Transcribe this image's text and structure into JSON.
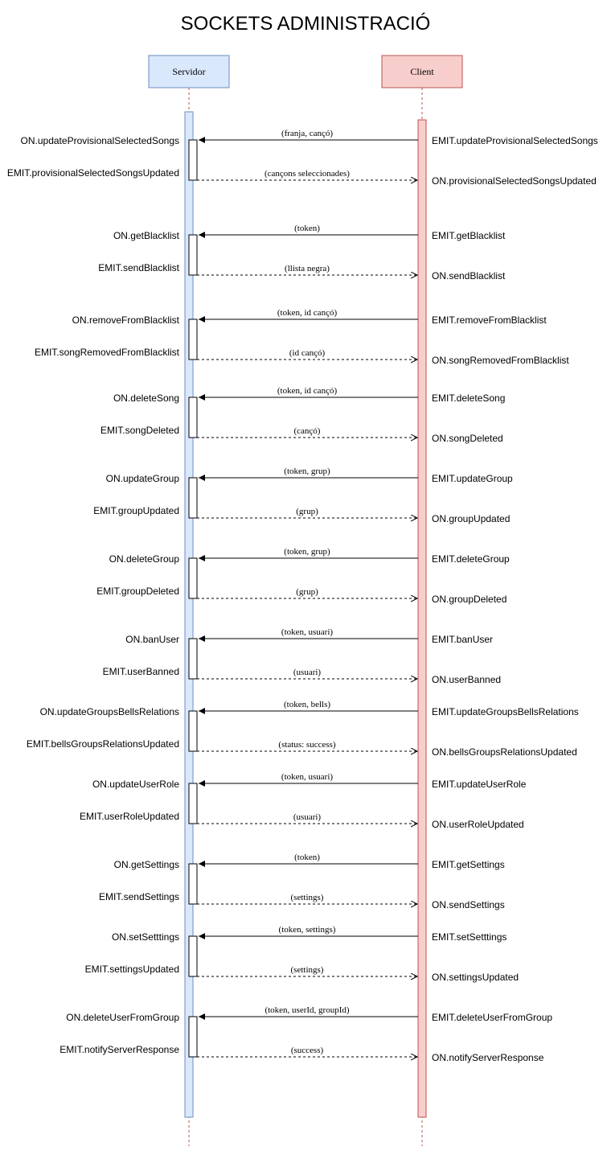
{
  "title": "SOCKETS ADMINISTRACIÓ",
  "colors": {
    "server_fill": "#dae8fc",
    "server_stroke": "#6c8ebf",
    "client_fill": "#f8cecc",
    "client_stroke": "#b85450",
    "line": "#000000"
  },
  "participants": {
    "server": {
      "label": "Servidor"
    },
    "client": {
      "label": "Client"
    }
  },
  "exchanges": [
    {
      "server_on": "ON.updateProvisionalSelectedSongs",
      "client_emit": "EMIT.updateProvisionalSelectedSongs",
      "request": "(franja, cançó)",
      "server_emit": "EMIT.provisionalSelectedSongsUpdated",
      "client_on": "ON.provisionalSelectedSongsUpdated",
      "response": "(cançons seleccionades)"
    },
    {
      "server_on": "ON.getBlacklist",
      "client_emit": "EMIT.getBlacklist",
      "request": "(token)",
      "server_emit": "EMIT.sendBlacklist",
      "client_on": "ON.sendBlacklist",
      "response": "(llista negra)"
    },
    {
      "server_on": "ON.removeFromBlacklist",
      "client_emit": "EMIT.removeFromBlacklist",
      "request": "(token, id cançó)",
      "server_emit": "EMIT.songRemovedFromBlacklist",
      "client_on": "ON.songRemovedFromBlacklist",
      "response": "(id cançó)"
    },
    {
      "server_on": "ON.deleteSong",
      "client_emit": "EMIT.deleteSong",
      "request": "(token, id cançó)",
      "server_emit": "EMIT.songDeleted",
      "client_on": "ON.songDeleted",
      "response": "(cançó)"
    },
    {
      "server_on": "ON.updateGroup",
      "client_emit": "EMIT.updateGroup",
      "request": "(token, grup)",
      "server_emit": "EMIT.groupUpdated",
      "client_on": "ON.groupUpdated",
      "response": "(grup)"
    },
    {
      "server_on": "ON.deleteGroup",
      "client_emit": "EMIT.deleteGroup",
      "request": "(token, grup)",
      "server_emit": "EMIT.groupDeleted",
      "client_on": "ON.groupDeleted",
      "response": "(grup)"
    },
    {
      "server_on": "ON.banUser",
      "client_emit": "EMIT.banUser",
      "request": "(token, usuari)",
      "server_emit": "EMIT.userBanned",
      "client_on": "ON.userBanned",
      "response": "(usuari)"
    },
    {
      "server_on": "ON.updateGroupsBellsRelations",
      "client_emit": "EMIT.updateGroupsBellsRelations",
      "request": "(token, bells)",
      "server_emit": "EMIT.bellsGroupsRelationsUpdated",
      "client_on": "ON.bellsGroupsRelationsUpdated",
      "response": "(status: success)"
    },
    {
      "server_on": "ON.updateUserRole",
      "client_emit": "EMIT.updateUserRole",
      "request": "(token, usuari)",
      "server_emit": "EMIT.userRoleUpdated",
      "client_on": "ON.userRoleUpdated",
      "response": "(usuari)"
    },
    {
      "server_on": "ON.getSettings",
      "client_emit": "EMIT.getSettings",
      "request": "(token)",
      "server_emit": "EMIT.sendSettings",
      "client_on": "ON.sendSettings",
      "response": "(settings)"
    },
    {
      "server_on": "ON.setSetttings",
      "client_emit": "EMIT.setSetttings",
      "request": "(token, settings)",
      "server_emit": "EMIT.settingsUpdated",
      "client_on": "ON.settingsUpdated",
      "response": "(settings)"
    },
    {
      "server_on": "ON.deleteUserFromGroup",
      "client_emit": "EMIT.deleteUserFromGroup",
      "request": "(token, userId, groupId)",
      "server_emit": "EMIT.notifyServerResponse",
      "client_on": "ON.notifyServerResponse",
      "response": "(success)"
    }
  ]
}
